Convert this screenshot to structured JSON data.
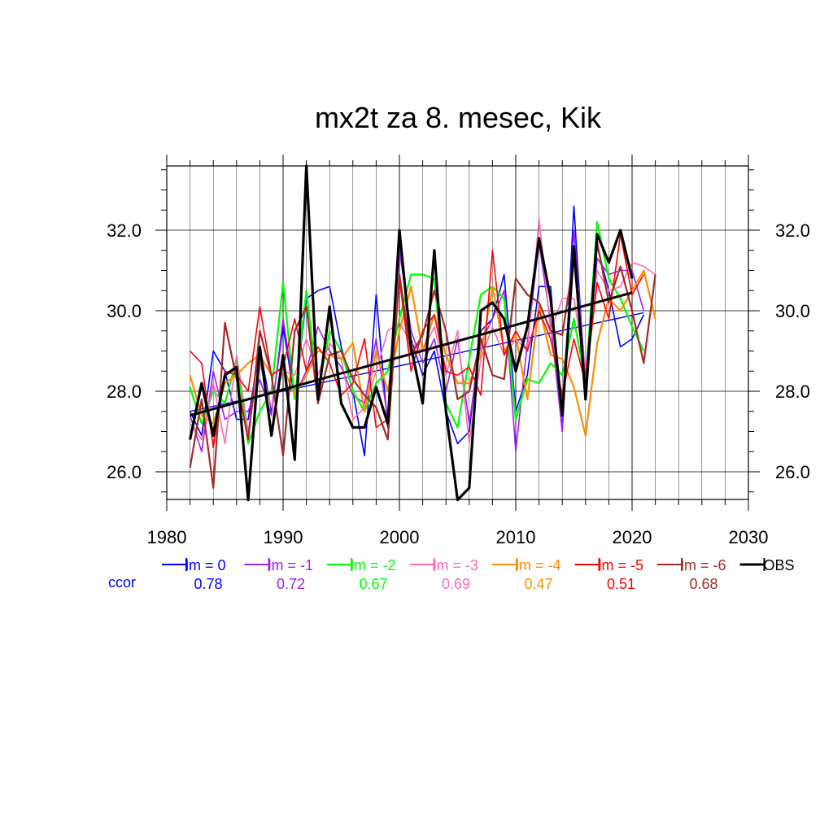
{
  "chart_data": {
    "type": "line",
    "title": "mx2t za 8. mesec, Kik",
    "xlabel": "",
    "ylabel": "",
    "xlim": [
      1980,
      2030
    ],
    "ylim": [
      25.3,
      35.3
    ],
    "x_ticks": [
      1980,
      1990,
      2000,
      2010,
      2020,
      2030
    ],
    "y_ticks": [
      26.0,
      28.0,
      30.0,
      32.0
    ],
    "y_tick_labels": [
      "26.0",
      "28.0",
      "30.0",
      "32.0"
    ],
    "grid": true,
    "legend_position": "bottom",
    "ccor_label": "ccor",
    "ccor_color": "#0000ff",
    "series": [
      {
        "name": "lm = 0",
        "color": "#0000ff",
        "width": 1.6,
        "ccor": "0.78",
        "x": [
          1982,
          1983,
          1984,
          1985,
          1986,
          1987,
          1988,
          1989,
          1990,
          1991,
          1992,
          1993,
          1994,
          1995,
          1996,
          1997,
          1998,
          1999,
          2000,
          2001,
          2002,
          2003,
          2004,
          2005,
          2006,
          2007,
          2008,
          2009,
          2010,
          2011,
          2012,
          2013,
          2014,
          2015,
          2016,
          2017,
          2018,
          2019,
          2020,
          2021
        ],
        "values": [
          27.5,
          26.9,
          29.0,
          28.5,
          27.3,
          27.3,
          29.1,
          27.5,
          29.6,
          27.8,
          30.3,
          30.5,
          30.6,
          29.1,
          28.0,
          26.4,
          30.4,
          27.1,
          31.8,
          29.3,
          28.4,
          29.0,
          27.5,
          26.7,
          27.0,
          29.5,
          29.8,
          30.9,
          27.5,
          28.4,
          30.6,
          30.6,
          27.0,
          32.6,
          28.0,
          31.6,
          30.5,
          29.1,
          29.3,
          29.9
        ],
        "trend": [
          [
            1982,
            27.5
          ],
          [
            2021,
            29.95
          ]
        ]
      },
      {
        "name": "lm = -1",
        "color": "#a020f0",
        "width": 1.6,
        "ccor": "0.72",
        "x": [
          1982,
          1983,
          1984,
          1985,
          1986,
          1987,
          1988,
          1989,
          1990,
          1991,
          1992,
          1993,
          1994,
          1995,
          1996,
          1997,
          1998,
          1999,
          2000,
          2001,
          2002,
          2003,
          2004,
          2005,
          2006,
          2007,
          2008,
          2009,
          2010,
          2011,
          2012,
          2013,
          2014,
          2015,
          2016,
          2017,
          2018,
          2019,
          2020,
          2021
        ],
        "values": [
          27.4,
          26.5,
          28.5,
          27.3,
          27.5,
          27.5,
          28.3,
          27.4,
          29.8,
          27.9,
          28.5,
          29.6,
          29.0,
          28.6,
          27.9,
          27.7,
          29.3,
          27.3,
          31.5,
          29.5,
          28.7,
          29.3,
          28.0,
          29.3,
          27.2,
          29.2,
          29.8,
          30.5,
          26.5,
          29.2,
          31.7,
          29.7,
          27.0,
          32.0,
          28.3,
          31.3,
          30.9,
          31.0,
          31.0,
          30.0
        ]
      },
      {
        "name": "lm = -2",
        "color": "#00ff00",
        "width": 2.2,
        "ccor": "0.67",
        "x": [
          1982,
          1983,
          1984,
          1985,
          1986,
          1987,
          1988,
          1989,
          1990,
          1991,
          1992,
          1993,
          1994,
          1995,
          1996,
          1997,
          1998,
          1999,
          2000,
          2001,
          2002,
          2003,
          2004,
          2005,
          2006,
          2007,
          2008,
          2009,
          2010,
          2011,
          2012,
          2013,
          2014,
          2015,
          2016,
          2017,
          2018,
          2019,
          2020,
          2021
        ],
        "values": [
          28.1,
          27.2,
          28.0,
          27.7,
          28.8,
          26.7,
          27.5,
          28.0,
          30.7,
          27.8,
          30.5,
          28.0,
          29.5,
          29.0,
          28.0,
          27.5,
          28.2,
          28.5,
          29.8,
          30.9,
          30.9,
          30.8,
          27.7,
          27.1,
          28.8,
          30.4,
          30.6,
          30.3,
          27.3,
          28.3,
          28.2,
          28.7,
          28.4,
          29.8,
          28.2,
          32.2,
          30.8,
          30.3,
          29.6,
          29.0
        ]
      },
      {
        "name": "lm = -3",
        "color": "#ff69b4",
        "width": 1.6,
        "ccor": "0.69",
        "x": [
          1982,
          1983,
          1984,
          1985,
          1986,
          1987,
          1988,
          1989,
          1990,
          1991,
          1992,
          1993,
          1994,
          1995,
          1996,
          1997,
          1998,
          1999,
          2000,
          2001,
          2002,
          2003,
          2004,
          2005,
          2006,
          2007,
          2008,
          2009,
          2010,
          2011,
          2012,
          2013,
          2014,
          2015,
          2016,
          2017,
          2018,
          2019,
          2020,
          2021,
          2022
        ],
        "values": [
          27.2,
          26.8,
          28.2,
          26.7,
          28.9,
          27.0,
          28.7,
          27.6,
          28.5,
          28.4,
          29.3,
          28.4,
          29.2,
          28.8,
          27.3,
          27.6,
          28.5,
          29.5,
          29.7,
          29.2,
          29.0,
          29.6,
          28.4,
          29.5,
          26.7,
          28.8,
          29.6,
          28.9,
          29.3,
          29.0,
          32.3,
          29.5,
          30.3,
          30.3,
          28.5,
          31.0,
          30.5,
          30.6,
          31.2,
          31.1,
          30.9
        ]
      },
      {
        "name": "lm = -4",
        "color": "#ff8c00",
        "width": 2.2,
        "ccor": "0.47",
        "x": [
          1982,
          1983,
          1984,
          1985,
          1986,
          1987,
          1988,
          1989,
          1990,
          1991,
          1992,
          1993,
          1994,
          1995,
          1996,
          1997,
          1998,
          1999,
          2000,
          2001,
          2002,
          2003,
          2004,
          2005,
          2006,
          2007,
          2008,
          2009,
          2010,
          2011,
          2012,
          2013,
          2014,
          2015,
          2016,
          2017,
          2018,
          2019,
          2020,
          2021,
          2022
        ],
        "values": [
          28.4,
          27.4,
          27.2,
          28.2,
          28.4,
          28.7,
          28.9,
          28.4,
          28.6,
          27.9,
          28.4,
          29.0,
          28.9,
          28.8,
          29.2,
          27.5,
          29.0,
          28.0,
          29.5,
          30.6,
          29.0,
          29.9,
          28.9,
          28.2,
          28.2,
          28.9,
          30.6,
          29.0,
          29.4,
          27.8,
          30.1,
          28.9,
          28.8,
          28.1,
          26.9,
          29.2,
          30.3,
          30.0,
          30.5,
          31.0,
          29.8
        ]
      },
      {
        "name": "lm = -5",
        "color": "#ff0000",
        "width": 1.6,
        "ccor": "0.51",
        "x": [
          1982,
          1983,
          1984,
          1985,
          1986,
          1987,
          1988,
          1989,
          1990,
          1991,
          1992,
          1993,
          1994,
          1995,
          1996,
          1997,
          1998,
          1999,
          2000,
          2001,
          2002,
          2003,
          2004,
          2005,
          2006,
          2007,
          2008,
          2009,
          2010,
          2011,
          2012,
          2013,
          2014,
          2015,
          2016,
          2017,
          2018,
          2019,
          2020,
          2021
        ],
        "values": [
          29.0,
          28.7,
          26.6,
          28.5,
          28.4,
          28.0,
          30.1,
          28.4,
          28.6,
          29.8,
          28.5,
          29.1,
          28.7,
          27.9,
          28.2,
          29.3,
          27.1,
          27.3,
          30.8,
          28.5,
          29.5,
          29.9,
          28.5,
          28.4,
          28.6,
          27.9,
          31.5,
          28.9,
          29.5,
          29.0,
          30.0,
          29.3,
          27.9,
          29.3,
          28.2,
          30.7,
          29.8,
          31.9,
          30.4,
          30.9
        ]
      },
      {
        "name": "lm = -6",
        "color": "#a52a2a",
        "width": 2.2,
        "ccor": "0.68",
        "x": [
          1982,
          1983,
          1984,
          1985,
          1986,
          1987,
          1988,
          1989,
          1990,
          1991,
          1992,
          1993,
          1994,
          1995,
          1996,
          1997,
          1998,
          1999,
          2000,
          2001,
          2002,
          2003,
          2004,
          2005,
          2006,
          2007,
          2008,
          2009,
          2010,
          2011,
          2012,
          2013,
          2014,
          2015,
          2016,
          2017,
          2018,
          2019,
          2020,
          2021,
          2022
        ],
        "values": [
          26.1,
          27.8,
          25.6,
          29.7,
          28.3,
          26.8,
          29.5,
          28.4,
          26.4,
          29.5,
          30.1,
          27.7,
          28.9,
          29.0,
          28.3,
          27.9,
          27.6,
          26.8,
          30.9,
          28.9,
          29.4,
          30.5,
          29.5,
          27.8,
          28.0,
          29.3,
          28.4,
          28.3,
          30.8,
          30.4,
          30.2,
          29.5,
          29.4,
          31.3,
          28.2,
          31.7,
          30.2,
          31.1,
          30.0,
          28.7,
          30.9
        ]
      },
      {
        "name": "OBS",
        "color": "#000000",
        "width": 3.2,
        "ccor": "",
        "x": [
          1982,
          1983,
          1984,
          1985,
          1986,
          1987,
          1988,
          1989,
          1990,
          1991,
          1992,
          1993,
          1994,
          1995,
          1996,
          1997,
          1998,
          1999,
          2000,
          2001,
          2002,
          2003,
          2004,
          2005,
          2006,
          2007,
          2008,
          2009,
          2010,
          2011,
          2012,
          2013,
          2014,
          2015,
          2016,
          2017,
          2018,
          2019,
          2020
        ],
        "values": [
          26.8,
          28.2,
          26.9,
          28.4,
          28.6,
          25.3,
          29.1,
          26.9,
          28.9,
          26.3,
          33.6,
          27.8,
          30.1,
          27.7,
          27.1,
          27.1,
          28.1,
          27.2,
          32.0,
          29.1,
          27.7,
          31.5,
          27.5,
          25.3,
          25.6,
          30.0,
          30.2,
          29.8,
          28.5,
          29.6,
          31.8,
          30.3,
          27.4,
          31.6,
          27.8,
          31.9,
          31.2,
          32.0,
          30.8
        ],
        "trend": [
          [
            1982,
            27.4
          ],
          [
            2020,
            30.45
          ]
        ]
      }
    ]
  }
}
